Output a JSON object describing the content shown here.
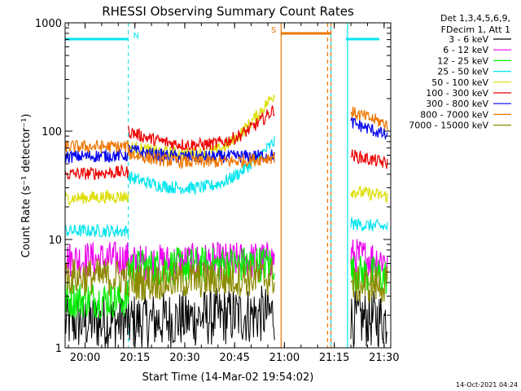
{
  "chart_data": {
    "type": "line",
    "title": "RHESSI Observing Summary Count Rates",
    "xlabel": "Start Time (14-Mar-02 19:54:02)",
    "ylabel": "Count Rate (s⁻¹ detector⁻¹)",
    "yscale": "log",
    "ylim": [
      1,
      1000
    ],
    "xlim": [
      "19:54",
      "21:32"
    ],
    "x_ticks": [
      "20:00",
      "20:15",
      "20:30",
      "20:45",
      "21:00",
      "21:15",
      "21:30"
    ],
    "y_ticks": [
      "1",
      "10",
      "100",
      "1000"
    ],
    "legend_header": [
      "Det 1,3,4,5,6,9,",
      "FDecim 1, Att 1"
    ],
    "legend_position": "top-right",
    "footer_date": "14-Oct-2021 04:24",
    "flags": [
      {
        "label": "N",
        "from": "19:54",
        "to": "20:13",
        "color": "#00e5ee"
      },
      {
        "label": "S",
        "from": "20:59",
        "to": "21:14",
        "color": "#ee7600"
      }
    ],
    "gaps": [
      {
        "from": "20:59",
        "to": "21:13",
        "color": "#ee7600"
      },
      {
        "from": "21:14",
        "to": "21:19",
        "color": "#00e5ee"
      }
    ],
    "series": [
      {
        "name": "3 - 6 keV",
        "color": "#000000",
        "segments": [
          {
            "from": "19:54",
            "to": "20:13",
            "start": 1.5,
            "end": 1.5
          },
          {
            "from": "20:13",
            "to": "20:57",
            "start": 1.5,
            "end": 1.8
          },
          {
            "from": "21:20",
            "to": "21:31",
            "start": 1.6,
            "end": 1.6
          }
        ]
      },
      {
        "name": "6 - 12 keV",
        "color": "#ee00ee",
        "segments": [
          {
            "from": "19:54",
            "to": "20:13",
            "start": 6.5,
            "end": 6.5
          },
          {
            "from": "20:13",
            "to": "20:57",
            "start": 6.0,
            "end": 6.5
          },
          {
            "from": "21:20",
            "to": "21:31",
            "start": 7.0,
            "end": 6.5
          }
        ]
      },
      {
        "name": "12 - 25 keV",
        "color": "#00ee00",
        "segments": [
          {
            "from": "19:54",
            "to": "20:13",
            "start": 2.8,
            "end": 2.8
          },
          {
            "from": "20:13",
            "to": "20:57",
            "start": 5.5,
            "end": 6.0
          },
          {
            "from": "21:20",
            "to": "21:31",
            "start": 5.0,
            "end": 4.5
          }
        ]
      },
      {
        "name": "25 - 50 keV",
        "color": "#00e5ee",
        "segments": [
          {
            "from": "19:54",
            "to": "20:13",
            "start": 12,
            "end": 12
          },
          {
            "from": "20:13",
            "to": "20:57",
            "start": 38,
            "end": 80,
            "min": 30,
            "mid": "20:30",
            "shape": "u"
          },
          {
            "from": "21:20",
            "to": "21:31",
            "start": 14,
            "end": 13
          }
        ]
      },
      {
        "name": "50 - 100 keV",
        "color": "#dddd00",
        "segments": [
          {
            "from": "19:54",
            "to": "20:13",
            "start": 24,
            "end": 25
          },
          {
            "from": "20:13",
            "to": "20:57",
            "start": 72,
            "end": 220,
            "min": 62,
            "mid": "20:32",
            "shape": "u"
          },
          {
            "from": "21:20",
            "to": "21:31",
            "start": 28,
            "end": 25
          }
        ]
      },
      {
        "name": "100 - 300 keV",
        "color": "#ee0000",
        "segments": [
          {
            "from": "19:54",
            "to": "20:13",
            "start": 40,
            "end": 42
          },
          {
            "from": "20:13",
            "to": "20:57",
            "start": 100,
            "end": 160,
            "min": 75,
            "mid": "20:32",
            "shape": "u"
          },
          {
            "from": "21:20",
            "to": "21:31",
            "start": 60,
            "end": 50
          }
        ]
      },
      {
        "name": "300 - 800 keV",
        "color": "#0000ee",
        "segments": [
          {
            "from": "19:54",
            "to": "20:13",
            "start": 58,
            "end": 60
          },
          {
            "from": "20:13",
            "to": "20:57",
            "start": 68,
            "end": 60,
            "min": 58,
            "mid": "20:30",
            "shape": "u"
          },
          {
            "from": "21:20",
            "to": "21:31",
            "start": 120,
            "end": 90
          }
        ]
      },
      {
        "name": "800 - 7000 keV",
        "color": "#ee7600",
        "segments": [
          {
            "from": "19:54",
            "to": "20:13",
            "start": 72,
            "end": 72
          },
          {
            "from": "20:13",
            "to": "20:57",
            "start": 62,
            "end": 58,
            "min": 52,
            "mid": "20:32",
            "shape": "u"
          },
          {
            "from": "21:20",
            "to": "21:31",
            "start": 150,
            "end": 115
          }
        ]
      },
      {
        "name": "7000 - 15000 keV",
        "color": "#8b8b00",
        "segments": [
          {
            "from": "19:54",
            "to": "20:13",
            "start": 4.5,
            "end": 4.5
          },
          {
            "from": "20:13",
            "to": "20:57",
            "start": 4.0,
            "end": 4.5
          },
          {
            "from": "21:20",
            "to": "21:31",
            "start": 3.8,
            "end": 3.8
          }
        ]
      }
    ]
  }
}
